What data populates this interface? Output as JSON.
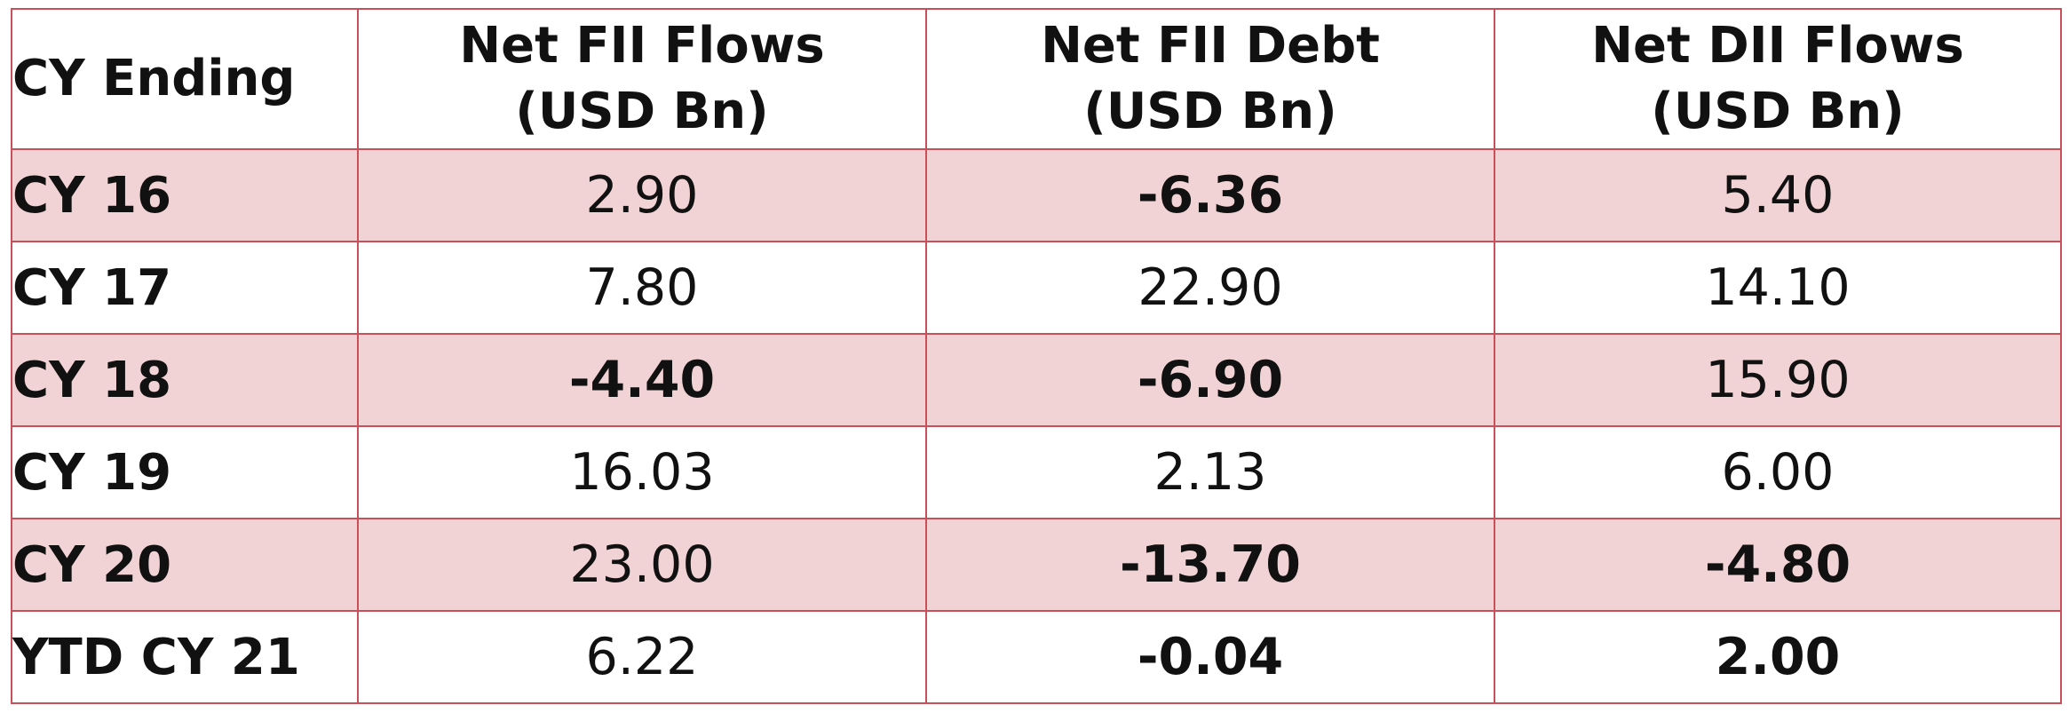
{
  "table": {
    "headers": [
      {
        "line1": "CY Ending",
        "line2": ""
      },
      {
        "line1": "Net FII Flows",
        "line2": "(USD Bn)"
      },
      {
        "line1": "Net FII Debt",
        "line2": "(USD Bn)"
      },
      {
        "line1": "Net DII Flows",
        "line2": "(USD Bn)"
      }
    ],
    "rows": [
      {
        "label": "CY 16",
        "fii_flows": "2.90",
        "fii_debt": "-6.36",
        "dii_flows": "5.40"
      },
      {
        "label": "CY 17",
        "fii_flows": "7.80",
        "fii_debt": "22.90",
        "dii_flows": "14.10"
      },
      {
        "label": "CY 18",
        "fii_flows": "-4.40",
        "fii_debt": "-6.90",
        "dii_flows": "15.90"
      },
      {
        "label": "CY 19",
        "fii_flows": "16.03",
        "fii_debt": "2.13",
        "dii_flows": "6.00"
      },
      {
        "label": "CY 20",
        "fii_flows": "23.00",
        "fii_debt": "-13.70",
        "dii_flows": "-4.80"
      },
      {
        "label": "YTD CY 21",
        "fii_flows": "6.22",
        "fii_debt": "-0.04",
        "dii_flows": "2.00"
      }
    ]
  },
  "colors": {
    "border": "#c9505a",
    "shaded_row": "#f2d3d5",
    "text": "#111111"
  }
}
